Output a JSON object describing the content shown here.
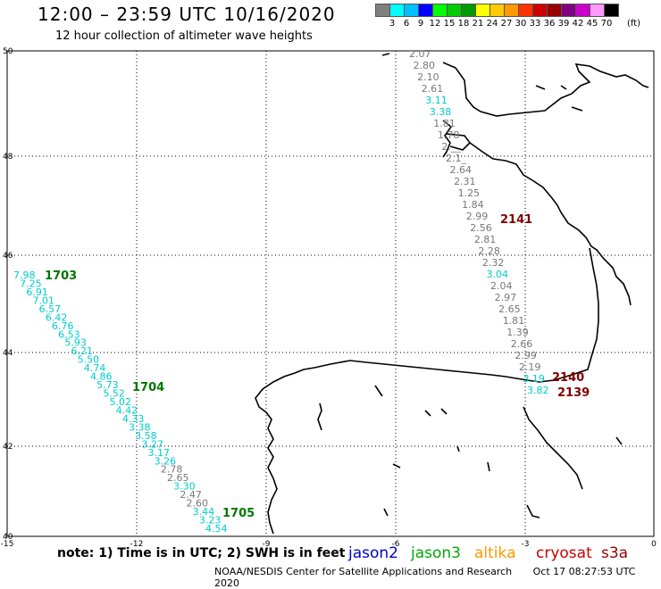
{
  "header": {
    "title": "12:00 – 23:59 UTC 10/16/2020",
    "subtitle": "12 hour collection of altimeter wave heights"
  },
  "color_scale": {
    "colors": [
      "#7f7f7f",
      "#00ffff",
      "#00bfff",
      "#0000ff",
      "#00ff00",
      "#00cc00",
      "#009900",
      "#ffff00",
      "#ffcc00",
      "#ff9900",
      "#ff3300",
      "#cc0000",
      "#990000",
      "#800080",
      "#cc00cc",
      "#ff99ff",
      "#000000"
    ],
    "labels": [
      "3",
      "6",
      "9",
      "12",
      "15",
      "18",
      "21",
      "24",
      "27",
      "30",
      "33",
      "36",
      "39",
      "42",
      "45",
      "70"
    ],
    "unit": "(ft)"
  },
  "axes": {
    "lon_ticks": [
      "-15",
      "-12",
      "-9",
      "-6",
      "-3",
      "0"
    ],
    "lat_ticks": [
      "50",
      "48",
      "46",
      "44",
      "42",
      "40"
    ]
  },
  "tracks": [
    {
      "id": "1703",
      "color": "#007700"
    },
    {
      "id": "1704",
      "color": "#007700"
    },
    {
      "id": "1705",
      "color": "#007700"
    },
    {
      "id": "2141",
      "color": "#800000"
    },
    {
      "id": "2140",
      "color": "#800000"
    },
    {
      "id": "2139",
      "color": "#800000"
    }
  ],
  "measurements_west": [
    {
      "v": "7.98",
      "c": "cyan"
    },
    {
      "v": "7.25",
      "c": "cyan"
    },
    {
      "v": "6.91",
      "c": "cyan"
    },
    {
      "v": "7.01",
      "c": "cyan"
    },
    {
      "v": "6.57",
      "c": "cyan"
    },
    {
      "v": "6.42",
      "c": "cyan"
    },
    {
      "v": "6.76",
      "c": "cyan"
    },
    {
      "v": "6.53",
      "c": "cyan"
    },
    {
      "v": "5.93",
      "c": "cyan"
    },
    {
      "v": "6.21",
      "c": "cyan"
    },
    {
      "v": "5.50",
      "c": "cyan"
    },
    {
      "v": "4.74",
      "c": "cyan"
    },
    {
      "v": "4.86",
      "c": "cyan"
    },
    {
      "v": "5.73",
      "c": "cyan"
    },
    {
      "v": "5.52",
      "c": "cyan"
    },
    {
      "v": "5.02",
      "c": "cyan"
    },
    {
      "v": "4.42",
      "c": "cyan"
    },
    {
      "v": "4.33",
      "c": "cyan"
    },
    {
      "v": "3.38",
      "c": "cyan"
    },
    {
      "v": "3.58",
      "c": "cyan"
    },
    {
      "v": "3.27",
      "c": "cyan"
    },
    {
      "v": "3.17",
      "c": "cyan"
    },
    {
      "v": "3.26",
      "c": "cyan"
    },
    {
      "v": "2.78",
      "c": "gray"
    },
    {
      "v": "2.65",
      "c": "gray"
    },
    {
      "v": "3.30",
      "c": "cyan"
    },
    {
      "v": "2.47",
      "c": "gray"
    },
    {
      "v": "2.60",
      "c": "gray"
    },
    {
      "v": "3.44",
      "c": "cyan"
    },
    {
      "v": "3.23",
      "c": "cyan"
    },
    {
      "v": "4.54",
      "c": "cyan"
    }
  ],
  "measurements_east": [
    {
      "v": "2.07",
      "c": "gray"
    },
    {
      "v": "2.80",
      "c": "gray"
    },
    {
      "v": "2.10",
      "c": "gray"
    },
    {
      "v": "2.61",
      "c": "gray"
    },
    {
      "v": "3.11",
      "c": "cyan"
    },
    {
      "v": "3.38",
      "c": "cyan"
    },
    {
      "v": "1.81",
      "c": "gray"
    },
    {
      "v": "1.78",
      "c": "gray"
    },
    {
      "v": "2.__",
      "c": "gray"
    },
    {
      "v": "2.1_",
      "c": "gray"
    },
    {
      "v": "2.64",
      "c": "gray"
    },
    {
      "v": "2.31",
      "c": "gray"
    },
    {
      "v": "1.25",
      "c": "gray"
    },
    {
      "v": "1.84",
      "c": "gray"
    },
    {
      "v": "2.99",
      "c": "gray"
    },
    {
      "v": "2.56",
      "c": "gray"
    },
    {
      "v": "2.81",
      "c": "gray"
    },
    {
      "v": "2.28",
      "c": "gray"
    },
    {
      "v": "2.32",
      "c": "gray"
    },
    {
      "v": "3.04",
      "c": "cyan"
    },
    {
      "v": "2.04",
      "c": "gray"
    },
    {
      "v": "2.97",
      "c": "gray"
    },
    {
      "v": "2.65",
      "c": "gray"
    },
    {
      "v": "1.81",
      "c": "gray"
    },
    {
      "v": "1.39",
      "c": "gray"
    },
    {
      "v": "2.66",
      "c": "gray"
    },
    {
      "v": "2.99",
      "c": "gray"
    },
    {
      "v": "2.19",
      "c": "gray"
    },
    {
      "v": "3.19",
      "c": "cyan"
    },
    {
      "v": "3.82",
      "c": "cyan"
    }
  ],
  "footer": {
    "note": "note:  1) Time is in UTC;  2) SWH is in feet",
    "credit": "NOAA/NESDIS Center for Satellite Applications and Research",
    "timestamp": "Oct 17 08:27:53 UTC 2020"
  },
  "legend": [
    {
      "name": "jason2",
      "color": "#0000cc"
    },
    {
      "name": "jason3",
      "color": "#00aa00"
    },
    {
      "name": "altika",
      "color": "#ff9900"
    },
    {
      "name": "cryosat",
      "color": "#cc0000"
    },
    {
      "name": "s3a",
      "color": "#990000"
    }
  ]
}
